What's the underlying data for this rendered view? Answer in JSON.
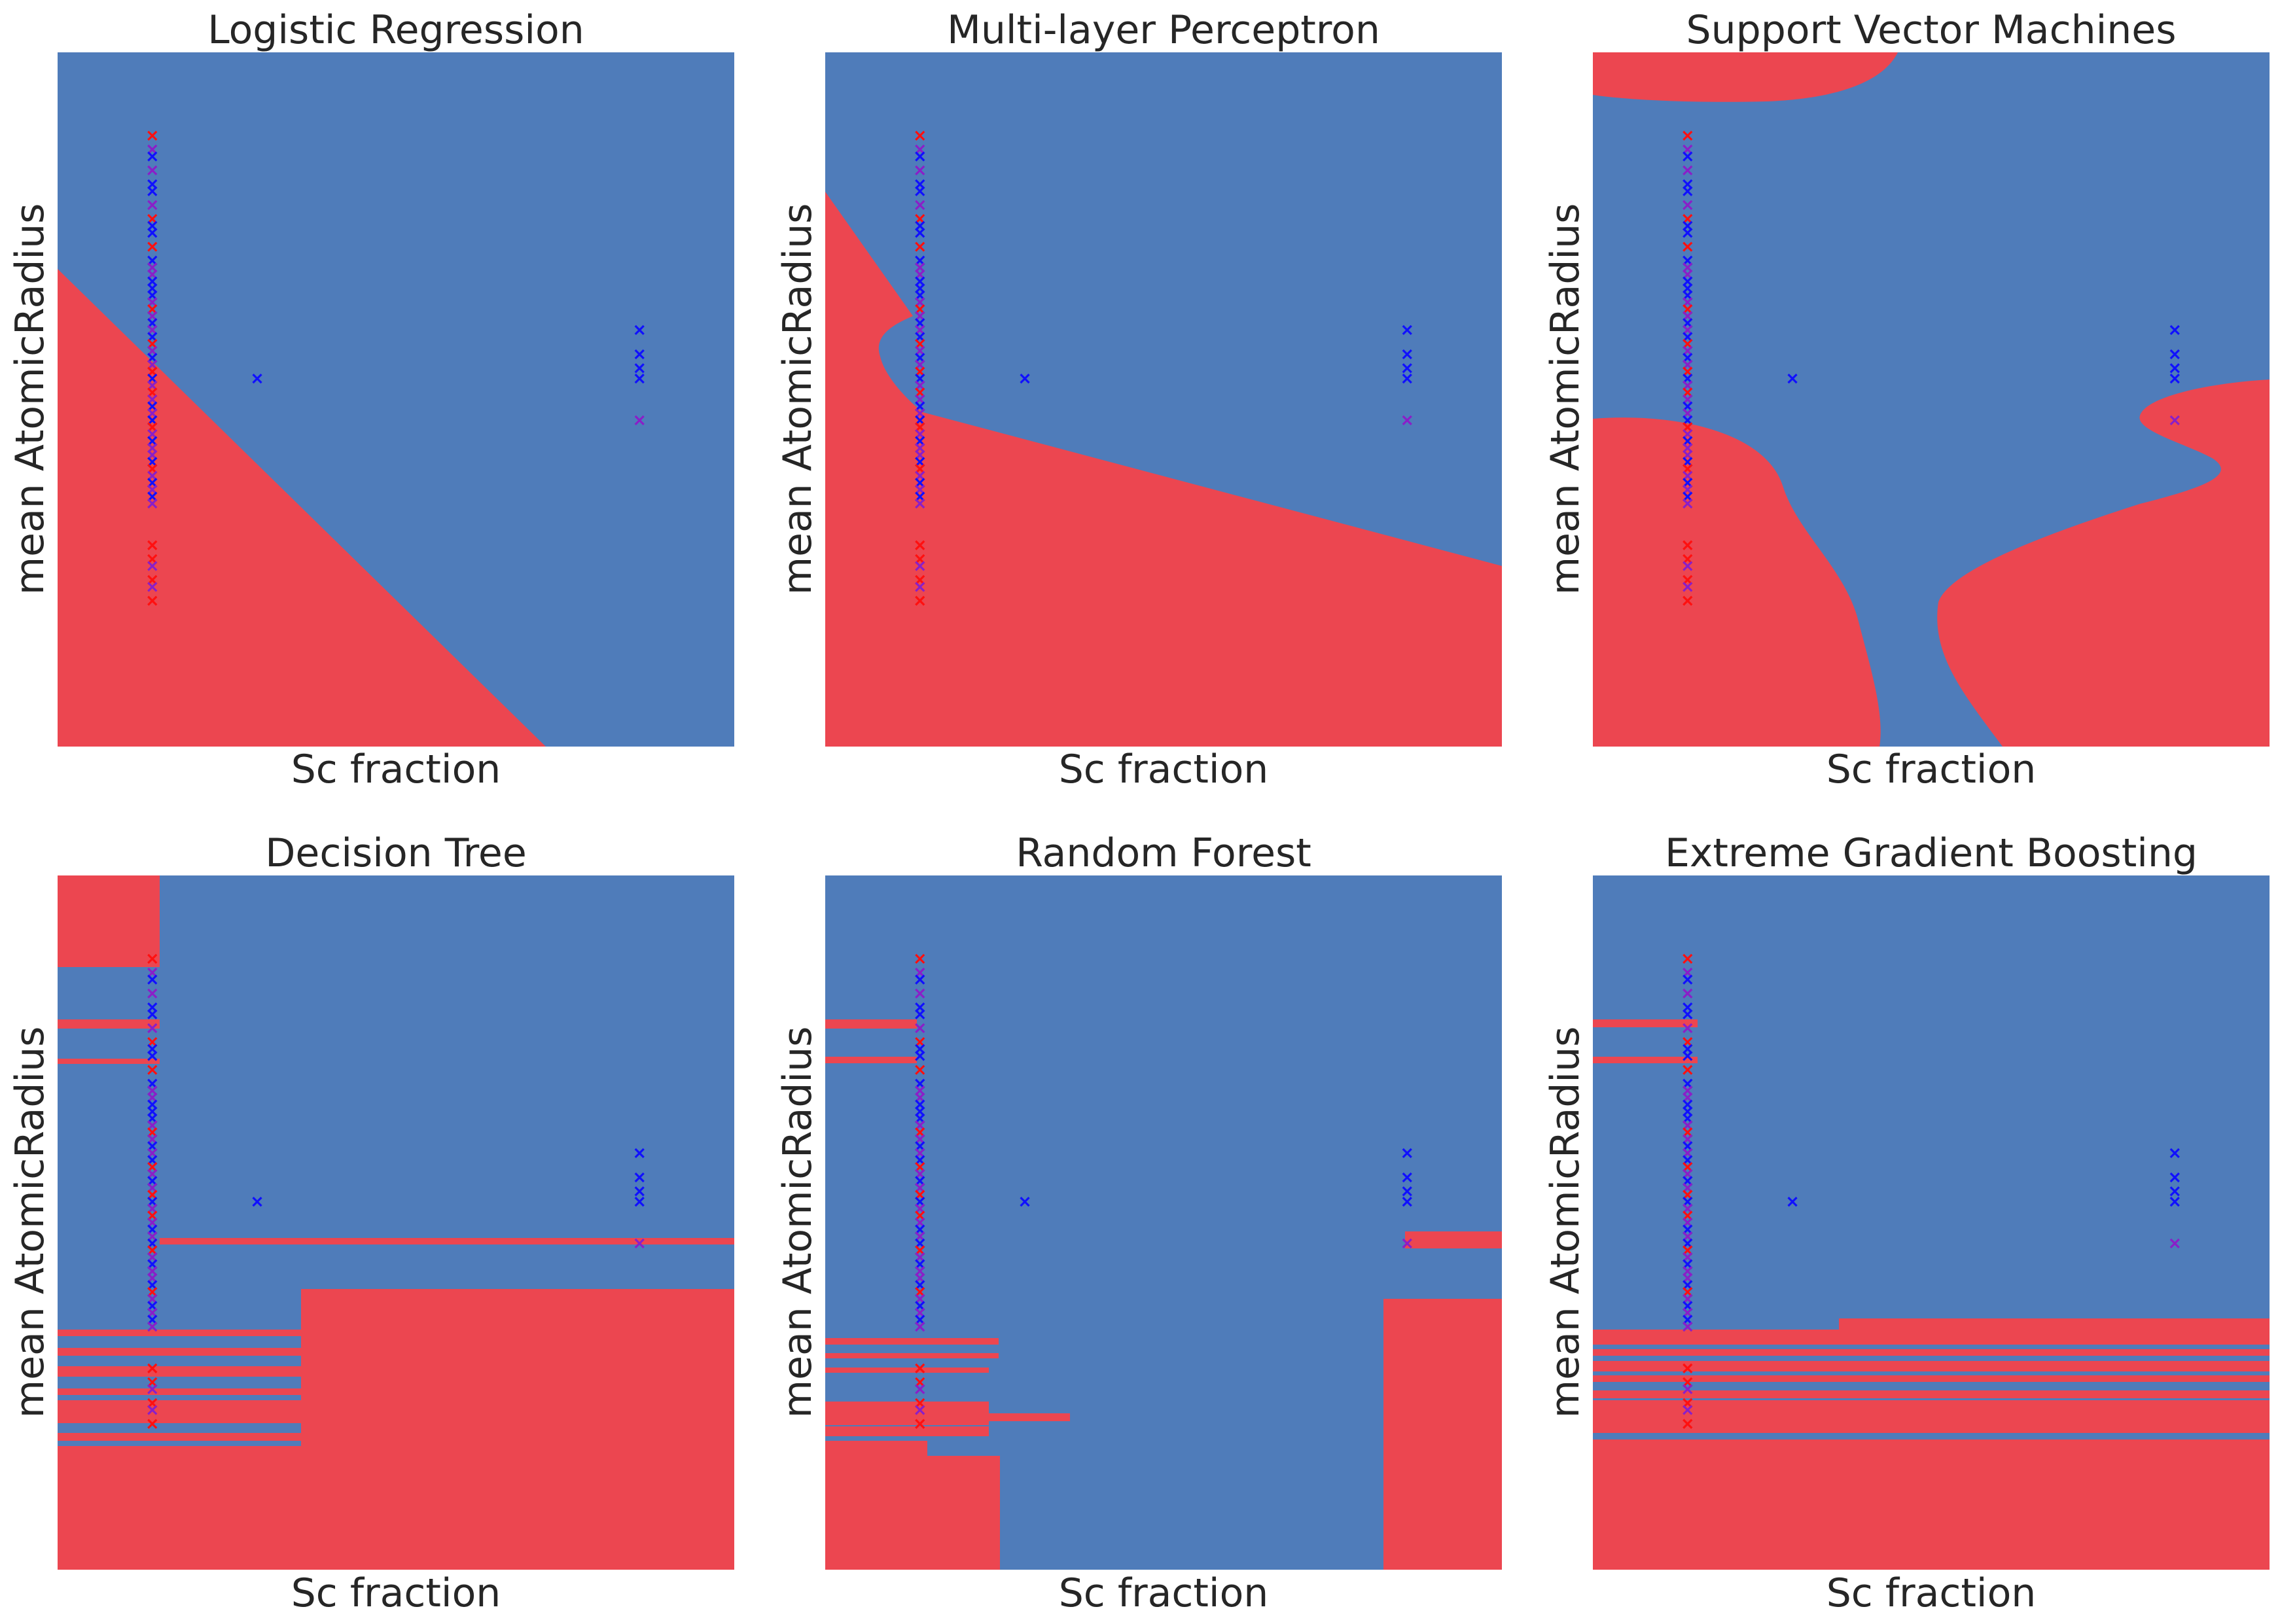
{
  "figure": {
    "xlabel": "Sc fraction",
    "ylabel": "mean AtomicRadius"
  },
  "colors": {
    "class_a_region": "#4f7cba",
    "class_b_region": "#ec4650",
    "class_a_marker": "#1010ff",
    "class_b_marker": "#ff1010",
    "mixed_marker": "#8a1fc8"
  },
  "chart_data": [
    {
      "type": "decision-boundary",
      "title": "Logistic Regression",
      "xlabel": "Sc fraction",
      "ylabel": "mean AtomicRadius",
      "xlim": [
        0,
        1
      ],
      "ylim": [
        0,
        1
      ],
      "boundary": [
        [
          0,
          0.69
        ],
        [
          0.72,
          0
        ]
      ],
      "class_b_side": "below"
    },
    {
      "type": "decision-boundary",
      "title": "Multi-layer Perceptron",
      "xlabel": "Sc fraction",
      "ylabel": "mean AtomicRadius",
      "xlim": [
        0,
        1
      ],
      "ylim": [
        0,
        1
      ],
      "boundary": [
        [
          0,
          0.8
        ],
        [
          0.13,
          0.6
        ],
        [
          0.08,
          0.57
        ],
        [
          0.14,
          0.48
        ],
        [
          1,
          0.26
        ]
      ],
      "class_b_side": "below"
    },
    {
      "type": "decision-boundary",
      "title": "Support Vector Machines",
      "xlabel": "Sc fraction",
      "ylabel": "mean AtomicRadius",
      "xlim": [
        0,
        1
      ],
      "ylim": [
        0,
        1
      ],
      "regions": [
        "top-left band",
        "lower-left lobe",
        "lower-right lobe"
      ]
    },
    {
      "type": "decision-boundary",
      "title": "Decision Tree",
      "xlabel": "Sc fraction",
      "ylabel": "mean AtomicRadius",
      "xlim": [
        0,
        1
      ],
      "ylim": [
        0,
        1
      ]
    },
    {
      "type": "decision-boundary",
      "title": "Random Forest",
      "xlabel": "Sc fraction",
      "ylabel": "mean AtomicRadius",
      "xlim": [
        0,
        1
      ],
      "ylim": [
        0,
        1
      ]
    },
    {
      "type": "decision-boundary",
      "title": "Extreme Gradient Boosting",
      "xlabel": "Sc fraction",
      "ylabel": "mean AtomicRadius",
      "xlim": [
        0,
        1
      ],
      "ylim": [
        0,
        1
      ]
    }
  ],
  "points": [
    {
      "x": 0.14,
      "y": 0.88,
      "c": "b"
    },
    {
      "x": 0.14,
      "y": 0.86,
      "c": "m"
    },
    {
      "x": 0.14,
      "y": 0.85,
      "c": "a"
    },
    {
      "x": 0.14,
      "y": 0.83,
      "c": "m"
    },
    {
      "x": 0.14,
      "y": 0.81,
      "c": "a"
    },
    {
      "x": 0.14,
      "y": 0.8,
      "c": "a"
    },
    {
      "x": 0.14,
      "y": 0.78,
      "c": "m"
    },
    {
      "x": 0.14,
      "y": 0.76,
      "c": "b"
    },
    {
      "x": 0.14,
      "y": 0.75,
      "c": "a"
    },
    {
      "x": 0.14,
      "y": 0.74,
      "c": "a"
    },
    {
      "x": 0.14,
      "y": 0.72,
      "c": "b"
    },
    {
      "x": 0.14,
      "y": 0.7,
      "c": "a"
    },
    {
      "x": 0.14,
      "y": 0.69,
      "c": "m"
    },
    {
      "x": 0.14,
      "y": 0.68,
      "c": "m"
    },
    {
      "x": 0.14,
      "y": 0.67,
      "c": "a"
    },
    {
      "x": 0.14,
      "y": 0.66,
      "c": "a"
    },
    {
      "x": 0.14,
      "y": 0.65,
      "c": "a"
    },
    {
      "x": 0.14,
      "y": 0.64,
      "c": "m"
    },
    {
      "x": 0.14,
      "y": 0.63,
      "c": "b"
    },
    {
      "x": 0.14,
      "y": 0.62,
      "c": "m"
    },
    {
      "x": 0.14,
      "y": 0.61,
      "c": "a"
    },
    {
      "x": 0.14,
      "y": 0.6,
      "c": "m"
    },
    {
      "x": 0.14,
      "y": 0.59,
      "c": "a"
    },
    {
      "x": 0.14,
      "y": 0.58,
      "c": "b"
    },
    {
      "x": 0.14,
      "y": 0.57,
      "c": "m"
    },
    {
      "x": 0.14,
      "y": 0.56,
      "c": "a"
    },
    {
      "x": 0.14,
      "y": 0.55,
      "c": "m"
    },
    {
      "x": 0.14,
      "y": 0.54,
      "c": "b"
    },
    {
      "x": 0.14,
      "y": 0.53,
      "c": "a"
    },
    {
      "x": 0.14,
      "y": 0.52,
      "c": "m"
    },
    {
      "x": 0.14,
      "y": 0.51,
      "c": "b"
    },
    {
      "x": 0.14,
      "y": 0.5,
      "c": "m"
    },
    {
      "x": 0.14,
      "y": 0.49,
      "c": "a"
    },
    {
      "x": 0.14,
      "y": 0.48,
      "c": "m"
    },
    {
      "x": 0.14,
      "y": 0.47,
      "c": "a"
    },
    {
      "x": 0.14,
      "y": 0.46,
      "c": "b"
    },
    {
      "x": 0.14,
      "y": 0.45,
      "c": "m"
    },
    {
      "x": 0.14,
      "y": 0.44,
      "c": "a"
    },
    {
      "x": 0.14,
      "y": 0.43,
      "c": "m"
    },
    {
      "x": 0.14,
      "y": 0.42,
      "c": "m"
    },
    {
      "x": 0.14,
      "y": 0.41,
      "c": "a"
    },
    {
      "x": 0.14,
      "y": 0.4,
      "c": "b"
    },
    {
      "x": 0.14,
      "y": 0.39,
      "c": "m"
    },
    {
      "x": 0.14,
      "y": 0.38,
      "c": "a"
    },
    {
      "x": 0.14,
      "y": 0.37,
      "c": "m"
    },
    {
      "x": 0.14,
      "y": 0.36,
      "c": "a"
    },
    {
      "x": 0.14,
      "y": 0.35,
      "c": "m"
    },
    {
      "x": 0.14,
      "y": 0.29,
      "c": "b"
    },
    {
      "x": 0.14,
      "y": 0.27,
      "c": "b"
    },
    {
      "x": 0.14,
      "y": 0.26,
      "c": "m"
    },
    {
      "x": 0.14,
      "y": 0.24,
      "c": "b"
    },
    {
      "x": 0.14,
      "y": 0.23,
      "c": "m"
    },
    {
      "x": 0.14,
      "y": 0.21,
      "c": "b"
    },
    {
      "x": 0.295,
      "y": 0.53,
      "c": "a"
    },
    {
      "x": 0.86,
      "y": 0.6,
      "c": "a"
    },
    {
      "x": 0.86,
      "y": 0.565,
      "c": "a"
    },
    {
      "x": 0.86,
      "y": 0.545,
      "c": "a"
    },
    {
      "x": 0.86,
      "y": 0.53,
      "c": "a"
    },
    {
      "x": 0.86,
      "y": 0.47,
      "c": "m"
    }
  ]
}
